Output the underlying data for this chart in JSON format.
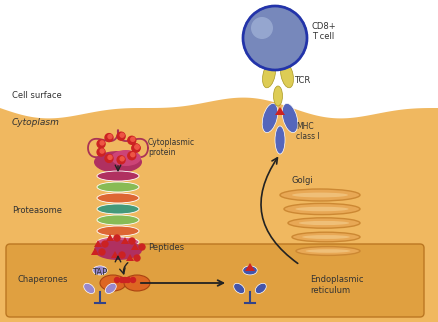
{
  "labels": {
    "cell_surface": "Cell surface",
    "cytoplasm": "Cytoplasm",
    "cytoplasmic_protein": "Cytoplasmic\nprotein",
    "proteasome": "Proteasome",
    "peptides": "Peptides",
    "tap": "TAP",
    "chaperones": "Chaperones",
    "er": "Endoplasmic\nreticulum",
    "golgi": "Golgi",
    "tcr": "TCR",
    "mhc": "MHC\nclass I",
    "cd8": "CD8+\nT cell"
  },
  "colors": {
    "cell_bg": "#F0B860",
    "cell_bg2": "#E8AA50",
    "er_bg": "#E0A040",
    "white_bg": "#FFFFFF",
    "proteasome_pink": "#B03060",
    "proteasome_green": "#88BB55",
    "proteasome_orange": "#DD6633",
    "proteasome_teal": "#44997A",
    "proteasome_pink2": "#CC5588",
    "tap_orange": "#DD6622",
    "chaperone_purple": "#9988CC",
    "mhc_blue": "#4455AA",
    "tcell_blue": "#8899CC",
    "tcell_dark": "#3344AA",
    "tcell_light": "#AABBDD",
    "golgi_fill": "#E8A855",
    "golgi_edge": "#CC8833",
    "arrow_dark": "#222222",
    "peptide_red": "#CC2222",
    "label_dark": "#333333",
    "tcr_yellow": "#DDCC55",
    "tcr_edge": "#AA9922"
  }
}
